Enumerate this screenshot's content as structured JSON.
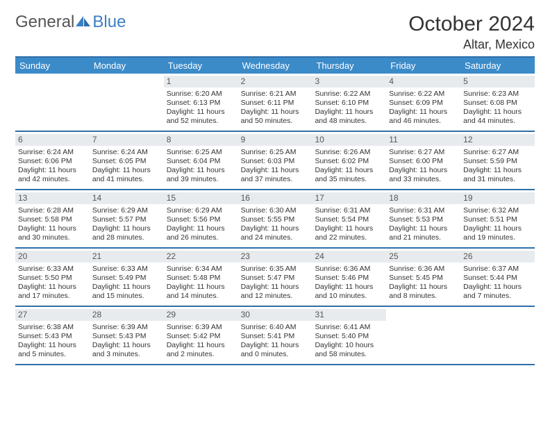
{
  "logo": {
    "text1": "General",
    "text2": "Blue"
  },
  "title": "October 2024",
  "location": "Altar, Mexico",
  "colors": {
    "header_bar": "#3b8bc9",
    "border": "#2e6fa8",
    "daynum_bg": "#e8ebee",
    "logo_blue": "#3b7fc4"
  },
  "day_names": [
    "Sunday",
    "Monday",
    "Tuesday",
    "Wednesday",
    "Thursday",
    "Friday",
    "Saturday"
  ],
  "weeks": [
    [
      {
        "num": "",
        "lines": []
      },
      {
        "num": "",
        "lines": []
      },
      {
        "num": "1",
        "lines": [
          "Sunrise: 6:20 AM",
          "Sunset: 6:13 PM",
          "Daylight: 11 hours",
          "and 52 minutes."
        ]
      },
      {
        "num": "2",
        "lines": [
          "Sunrise: 6:21 AM",
          "Sunset: 6:11 PM",
          "Daylight: 11 hours",
          "and 50 minutes."
        ]
      },
      {
        "num": "3",
        "lines": [
          "Sunrise: 6:22 AM",
          "Sunset: 6:10 PM",
          "Daylight: 11 hours",
          "and 48 minutes."
        ]
      },
      {
        "num": "4",
        "lines": [
          "Sunrise: 6:22 AM",
          "Sunset: 6:09 PM",
          "Daylight: 11 hours",
          "and 46 minutes."
        ]
      },
      {
        "num": "5",
        "lines": [
          "Sunrise: 6:23 AM",
          "Sunset: 6:08 PM",
          "Daylight: 11 hours",
          "and 44 minutes."
        ]
      }
    ],
    [
      {
        "num": "6",
        "lines": [
          "Sunrise: 6:24 AM",
          "Sunset: 6:06 PM",
          "Daylight: 11 hours",
          "and 42 minutes."
        ]
      },
      {
        "num": "7",
        "lines": [
          "Sunrise: 6:24 AM",
          "Sunset: 6:05 PM",
          "Daylight: 11 hours",
          "and 41 minutes."
        ]
      },
      {
        "num": "8",
        "lines": [
          "Sunrise: 6:25 AM",
          "Sunset: 6:04 PM",
          "Daylight: 11 hours",
          "and 39 minutes."
        ]
      },
      {
        "num": "9",
        "lines": [
          "Sunrise: 6:25 AM",
          "Sunset: 6:03 PM",
          "Daylight: 11 hours",
          "and 37 minutes."
        ]
      },
      {
        "num": "10",
        "lines": [
          "Sunrise: 6:26 AM",
          "Sunset: 6:02 PM",
          "Daylight: 11 hours",
          "and 35 minutes."
        ]
      },
      {
        "num": "11",
        "lines": [
          "Sunrise: 6:27 AM",
          "Sunset: 6:00 PM",
          "Daylight: 11 hours",
          "and 33 minutes."
        ]
      },
      {
        "num": "12",
        "lines": [
          "Sunrise: 6:27 AM",
          "Sunset: 5:59 PM",
          "Daylight: 11 hours",
          "and 31 minutes."
        ]
      }
    ],
    [
      {
        "num": "13",
        "lines": [
          "Sunrise: 6:28 AM",
          "Sunset: 5:58 PM",
          "Daylight: 11 hours",
          "and 30 minutes."
        ]
      },
      {
        "num": "14",
        "lines": [
          "Sunrise: 6:29 AM",
          "Sunset: 5:57 PM",
          "Daylight: 11 hours",
          "and 28 minutes."
        ]
      },
      {
        "num": "15",
        "lines": [
          "Sunrise: 6:29 AM",
          "Sunset: 5:56 PM",
          "Daylight: 11 hours",
          "and 26 minutes."
        ]
      },
      {
        "num": "16",
        "lines": [
          "Sunrise: 6:30 AM",
          "Sunset: 5:55 PM",
          "Daylight: 11 hours",
          "and 24 minutes."
        ]
      },
      {
        "num": "17",
        "lines": [
          "Sunrise: 6:31 AM",
          "Sunset: 5:54 PM",
          "Daylight: 11 hours",
          "and 22 minutes."
        ]
      },
      {
        "num": "18",
        "lines": [
          "Sunrise: 6:31 AM",
          "Sunset: 5:53 PM",
          "Daylight: 11 hours",
          "and 21 minutes."
        ]
      },
      {
        "num": "19",
        "lines": [
          "Sunrise: 6:32 AM",
          "Sunset: 5:51 PM",
          "Daylight: 11 hours",
          "and 19 minutes."
        ]
      }
    ],
    [
      {
        "num": "20",
        "lines": [
          "Sunrise: 6:33 AM",
          "Sunset: 5:50 PM",
          "Daylight: 11 hours",
          "and 17 minutes."
        ]
      },
      {
        "num": "21",
        "lines": [
          "Sunrise: 6:33 AM",
          "Sunset: 5:49 PM",
          "Daylight: 11 hours",
          "and 15 minutes."
        ]
      },
      {
        "num": "22",
        "lines": [
          "Sunrise: 6:34 AM",
          "Sunset: 5:48 PM",
          "Daylight: 11 hours",
          "and 14 minutes."
        ]
      },
      {
        "num": "23",
        "lines": [
          "Sunrise: 6:35 AM",
          "Sunset: 5:47 PM",
          "Daylight: 11 hours",
          "and 12 minutes."
        ]
      },
      {
        "num": "24",
        "lines": [
          "Sunrise: 6:36 AM",
          "Sunset: 5:46 PM",
          "Daylight: 11 hours",
          "and 10 minutes."
        ]
      },
      {
        "num": "25",
        "lines": [
          "Sunrise: 6:36 AM",
          "Sunset: 5:45 PM",
          "Daylight: 11 hours",
          "and 8 minutes."
        ]
      },
      {
        "num": "26",
        "lines": [
          "Sunrise: 6:37 AM",
          "Sunset: 5:44 PM",
          "Daylight: 11 hours",
          "and 7 minutes."
        ]
      }
    ],
    [
      {
        "num": "27",
        "lines": [
          "Sunrise: 6:38 AM",
          "Sunset: 5:43 PM",
          "Daylight: 11 hours",
          "and 5 minutes."
        ]
      },
      {
        "num": "28",
        "lines": [
          "Sunrise: 6:39 AM",
          "Sunset: 5:43 PM",
          "Daylight: 11 hours",
          "and 3 minutes."
        ]
      },
      {
        "num": "29",
        "lines": [
          "Sunrise: 6:39 AM",
          "Sunset: 5:42 PM",
          "Daylight: 11 hours",
          "and 2 minutes."
        ]
      },
      {
        "num": "30",
        "lines": [
          "Sunrise: 6:40 AM",
          "Sunset: 5:41 PM",
          "Daylight: 11 hours",
          "and 0 minutes."
        ]
      },
      {
        "num": "31",
        "lines": [
          "Sunrise: 6:41 AM",
          "Sunset: 5:40 PM",
          "Daylight: 10 hours",
          "and 58 minutes."
        ]
      },
      {
        "num": "",
        "lines": []
      },
      {
        "num": "",
        "lines": []
      }
    ]
  ]
}
